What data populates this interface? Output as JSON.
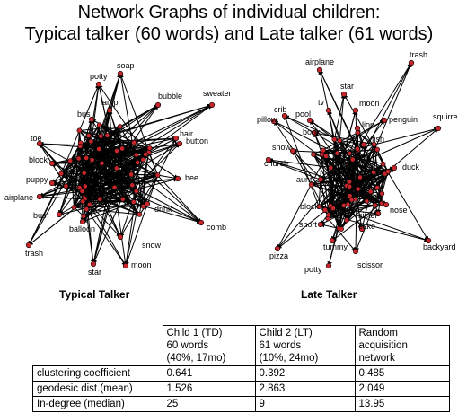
{
  "title": {
    "line1": "Network Graphs of individual children:",
    "line2": "Typical talker (60 words) and Late talker (61 words)"
  },
  "node_color": "#c8262b",
  "edge_color": "#000000",
  "graphs": [
    {
      "caption": "Typical Talker",
      "labels": [
        "soap",
        "potty",
        "lamp",
        "bubble",
        "sweater",
        "bus",
        "hair",
        "button",
        "toe",
        "block",
        "puppy",
        "bee",
        "airplane",
        "bus",
        "drink",
        "comb",
        "balloon",
        "snow",
        "star",
        "moon",
        "trash"
      ]
    },
    {
      "caption": "Late Talker",
      "labels": [
        "airplane",
        "trash",
        "star",
        "tv",
        "moon",
        "crib",
        "pool",
        "pillow",
        "book",
        "lion",
        "penguin",
        "squirrel",
        "fish",
        "snow",
        "church",
        "duck",
        "aunt",
        "nose",
        "block",
        "sister",
        "short",
        "cake",
        "backyard",
        "tummy",
        "pizza",
        "scissor",
        "potty"
      ]
    }
  ],
  "table": {
    "headers": [
      "",
      "Child 1 (TD)\n60 words\n(40%, 17mo)",
      "Child 2 (LT)\n61 words\n(10%, 24mo)",
      "Random\nacquisition\nnetwork"
    ],
    "rows": [
      [
        "clustering coefficient",
        "0.641",
        "0.392",
        "0.485"
      ],
      [
        "geodesic dist.(mean)",
        "1.526",
        "2.863",
        "2.049"
      ],
      [
        "In-degree (median)",
        "25",
        "9",
        "13.95"
      ]
    ]
  }
}
